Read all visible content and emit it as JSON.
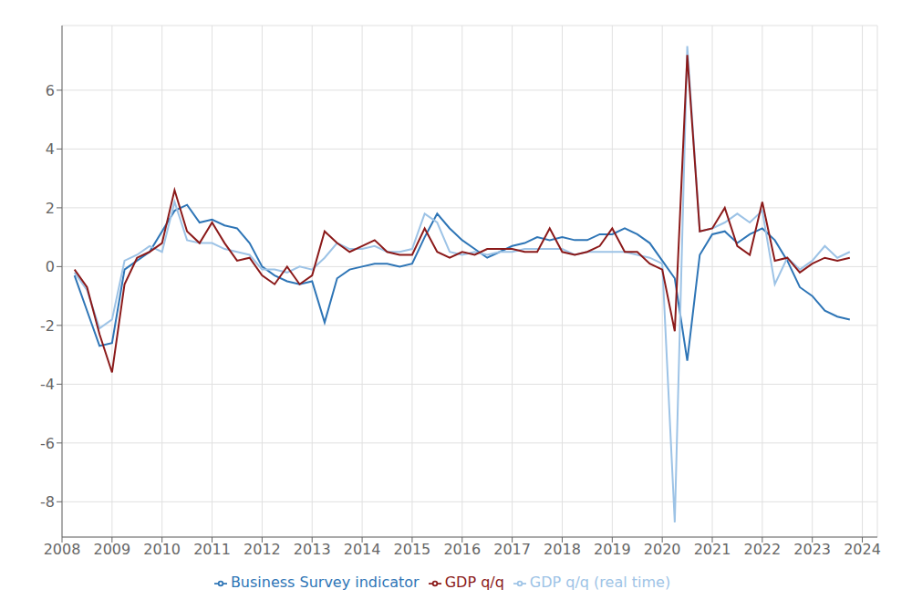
{
  "chart_data": {
    "type": "line",
    "x": [
      2008.25,
      2008.5,
      2008.75,
      2009.0,
      2009.25,
      2009.5,
      2009.75,
      2010.0,
      2010.25,
      2010.5,
      2010.75,
      2011.0,
      2011.25,
      2011.5,
      2011.75,
      2012.0,
      2012.25,
      2012.5,
      2012.75,
      2013.0,
      2013.25,
      2013.5,
      2013.75,
      2014.0,
      2014.25,
      2014.5,
      2014.75,
      2015.0,
      2015.25,
      2015.5,
      2015.75,
      2016.0,
      2016.25,
      2016.5,
      2016.75,
      2017.0,
      2017.25,
      2017.5,
      2017.75,
      2018.0,
      2018.25,
      2018.5,
      2018.75,
      2019.0,
      2019.25,
      2019.5,
      2019.75,
      2020.0,
      2020.25,
      2020.5,
      2020.75,
      2021.0,
      2021.25,
      2021.5,
      2021.75,
      2022.0,
      2022.25,
      2022.5,
      2022.75,
      2023.0,
      2023.25,
      2023.5,
      2023.75
    ],
    "series": [
      {
        "name": "Business Survey indicator",
        "color": "#2E75B6",
        "values": [
          -0.3,
          -1.5,
          -2.7,
          -2.6,
          -0.1,
          0.2,
          0.5,
          1.2,
          1.9,
          2.1,
          1.5,
          1.6,
          1.4,
          1.3,
          0.8,
          0.0,
          -0.3,
          -0.5,
          -0.6,
          -0.5,
          -1.9,
          -0.4,
          -0.1,
          0.0,
          0.1,
          0.1,
          0.0,
          0.1,
          1.0,
          1.8,
          1.3,
          0.9,
          0.6,
          0.3,
          0.5,
          0.7,
          0.8,
          1.0,
          0.9,
          1.0,
          0.9,
          0.9,
          1.1,
          1.1,
          1.3,
          1.1,
          0.8,
          0.2,
          -0.4,
          -3.2,
          0.4,
          1.1,
          1.2,
          0.8,
          1.1,
          1.3,
          0.9,
          0.2,
          -0.7,
          -1.0,
          -1.5,
          -1.7,
          -1.8
        ]
      },
      {
        "name": "GDP q/q (real time)",
        "color": "#9DC3E6",
        "values": [
          -0.2,
          -0.8,
          -2.1,
          -1.8,
          0.2,
          0.4,
          0.7,
          0.5,
          2.2,
          0.9,
          0.8,
          0.8,
          0.6,
          0.5,
          0.4,
          -0.1,
          -0.1,
          -0.2,
          0.0,
          -0.1,
          0.3,
          0.8,
          0.6,
          0.6,
          0.7,
          0.5,
          0.5,
          0.6,
          1.8,
          1.5,
          0.5,
          0.4,
          0.5,
          0.4,
          0.5,
          0.5,
          0.6,
          0.6,
          0.6,
          0.6,
          0.4,
          0.5,
          0.5,
          0.5,
          0.5,
          0.4,
          0.3,
          0.1,
          -8.7,
          7.5,
          1.2,
          1.3,
          1.5,
          1.8,
          1.5,
          1.9,
          -0.6,
          0.3,
          -0.1,
          0.2,
          0.7,
          0.3,
          0.5
        ]
      },
      {
        "name": "GDP q/q",
        "color": "#8B1A1A",
        "values": [
          -0.1,
          -0.7,
          -2.3,
          -3.6,
          -0.6,
          0.3,
          0.5,
          0.8,
          2.6,
          1.2,
          0.8,
          1.5,
          0.8,
          0.2,
          0.3,
          -0.3,
          -0.6,
          0.0,
          -0.6,
          -0.3,
          1.2,
          0.8,
          0.5,
          0.7,
          0.9,
          0.5,
          0.4,
          0.4,
          1.3,
          0.5,
          0.3,
          0.5,
          0.4,
          0.6,
          0.6,
          0.6,
          0.5,
          0.5,
          1.3,
          0.5,
          0.4,
          0.5,
          0.7,
          1.3,
          0.5,
          0.5,
          0.1,
          -0.1,
          -2.2,
          7.2,
          1.2,
          1.3,
          2.0,
          0.7,
          0.4,
          2.2,
          0.2,
          0.3,
          -0.2,
          0.1,
          0.3,
          0.2,
          0.3
        ]
      }
    ],
    "xlim": [
      2008.0,
      2024.3
    ],
    "xticks": [
      2008,
      2009,
      2010,
      2011,
      2012,
      2013,
      2014,
      2015,
      2016,
      2017,
      2018,
      2019,
      2020,
      2021,
      2022,
      2023,
      2024
    ],
    "ylim": [
      -9.2,
      8.2
    ],
    "yticks": [
      -8,
      -6,
      -4,
      -2,
      0,
      2,
      4,
      6
    ],
    "grid": true,
    "legend": "bottom"
  }
}
